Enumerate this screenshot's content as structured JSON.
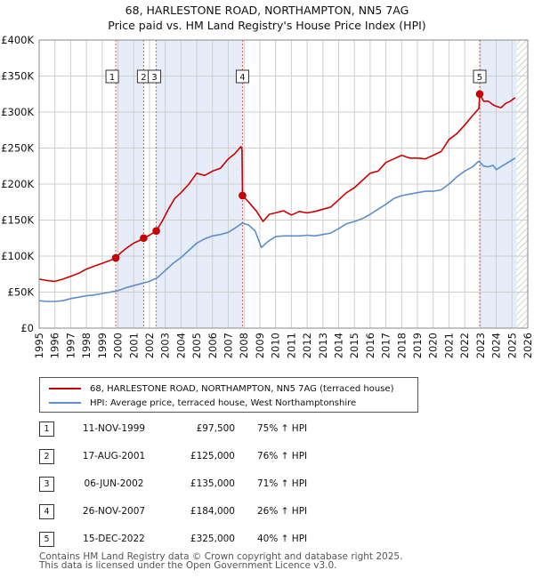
{
  "title_line1": "68, HARLESTONE ROAD, NORTHAMPTON, NN5 7AG",
  "title_line2": "Price paid vs. HM Land Registry's House Price Index (HPI)",
  "colors": {
    "property": "#cc0000",
    "hpi": "#5b8ecb",
    "shade": "#e6ecf8",
    "grid": "#cfcfcf"
  },
  "legend": {
    "property_label": "68, HARLESTONE ROAD, NORTHAMPTON, NN5 7AG (terraced house)",
    "hpi_label": "HPI: Average price, terraced house, West Northamptonshire"
  },
  "transactions": [
    {
      "num": "1",
      "date": "11-NOV-1999",
      "price": "£97,500",
      "hpi": "75% ↑ HPI"
    },
    {
      "num": "2",
      "date": "17-AUG-2001",
      "price": "£125,000",
      "hpi": "76% ↑ HPI"
    },
    {
      "num": "3",
      "date": "06-JUN-2002",
      "price": "£135,000",
      "hpi": "71% ↑ HPI"
    },
    {
      "num": "4",
      "date": "26-NOV-2007",
      "price": "£184,000",
      "hpi": "26% ↑ HPI"
    },
    {
      "num": "5",
      "date": "15-DEC-2022",
      "price": "£325,000",
      "hpi": "40% ↑ HPI"
    }
  ],
  "footer_line1": "Contains HM Land Registry data © Crown copyright and database right 2025.",
  "footer_line2": "This data is licensed under the Open Government Licence v3.0.",
  "chart_data": {
    "type": "line",
    "title": "Price paid vs. HM Land Registry's House Price Index (HPI)",
    "xlim": [
      1995,
      2026
    ],
    "ylim": [
      0,
      400000
    ],
    "x_ticks": [
      1995,
      1996,
      1997,
      1998,
      1999,
      2000,
      2001,
      2002,
      2003,
      2004,
      2005,
      2006,
      2007,
      2008,
      2009,
      2010,
      2011,
      2012,
      2013,
      2014,
      2015,
      2016,
      2017,
      2018,
      2019,
      2020,
      2021,
      2022,
      2023,
      2024,
      2025,
      2026
    ],
    "y_ticks": [
      {
        "value": 0,
        "label": "£0"
      },
      {
        "value": 50000,
        "label": "£50K"
      },
      {
        "value": 100000,
        "label": "£100K"
      },
      {
        "value": 150000,
        "label": "£150K"
      },
      {
        "value": 200000,
        "label": "£200K"
      },
      {
        "value": 250000,
        "label": "£250K"
      },
      {
        "value": 300000,
        "label": "£300K"
      },
      {
        "value": 350000,
        "label": "£350K"
      },
      {
        "value": 400000,
        "label": "£400K"
      }
    ],
    "grid": true,
    "shaded_periods": [
      [
        1999.86,
        2001.63
      ],
      [
        2002.43,
        2007.9
      ],
      [
        2022.95,
        2025.3
      ]
    ],
    "future_hatch_from": 2025.3,
    "series": [
      {
        "name": "68, HARLESTONE ROAD, NORTHAMPTON, NN5 7AG (terraced house)",
        "x": [
          1995.0,
          1995.5,
          1996.0,
          1996.5,
          1997.0,
          1997.5,
          1998.0,
          1998.5,
          1999.0,
          1999.5,
          1999.86,
          2000.2,
          2000.6,
          2001.0,
          2001.3,
          2001.63,
          2002.0,
          2002.43,
          2002.8,
          2003.2,
          2003.6,
          2004.0,
          2004.5,
          2005.0,
          2005.5,
          2006.0,
          2006.5,
          2007.0,
          2007.4,
          2007.8,
          2007.87,
          2007.9,
          2008.3,
          2008.8,
          2009.2,
          2009.6,
          2010.0,
          2010.5,
          2011.0,
          2011.5,
          2012.0,
          2012.5,
          2013.0,
          2013.5,
          2014.0,
          2014.5,
          2015.0,
          2015.5,
          2016.0,
          2016.5,
          2017.0,
          2017.5,
          2018.0,
          2018.5,
          2019.0,
          2019.5,
          2020.0,
          2020.5,
          2021.0,
          2021.5,
          2022.0,
          2022.5,
          2022.9,
          2022.95,
          2023.2,
          2023.5,
          2023.8,
          2024.0,
          2024.3,
          2024.6,
          2024.9,
          2025.2
        ],
        "values": [
          68000,
          66000,
          65000,
          68000,
          72000,
          76000,
          82000,
          86000,
          90000,
          94000,
          97500,
          105000,
          112000,
          118000,
          121000,
          125000,
          129000,
          135000,
          148000,
          165000,
          180000,
          188000,
          200000,
          215000,
          212000,
          218000,
          222000,
          235000,
          242000,
          252000,
          248000,
          184000,
          175000,
          162000,
          148000,
          158000,
          160000,
          163000,
          157000,
          162000,
          160000,
          162000,
          165000,
          168000,
          178000,
          188000,
          195000,
          205000,
          215000,
          218000,
          230000,
          235000,
          240000,
          236000,
          236000,
          235000,
          240000,
          245000,
          262000,
          270000,
          282000,
          295000,
          305000,
          325000,
          315000,
          315000,
          310000,
          308000,
          306000,
          312000,
          315000,
          320000
        ]
      },
      {
        "name": "HPI: Average price, terraced house, West Northamptonshire",
        "x": [
          1995.0,
          1995.5,
          1996.0,
          1996.5,
          1997.0,
          1997.5,
          1998.0,
          1998.5,
          1999.0,
          1999.5,
          2000.0,
          2000.5,
          2001.0,
          2001.5,
          2002.0,
          2002.5,
          2003.0,
          2003.5,
          2004.0,
          2004.5,
          2005.0,
          2005.5,
          2006.0,
          2006.5,
          2007.0,
          2007.5,
          2007.9,
          2008.3,
          2008.7,
          2009.1,
          2009.5,
          2010.0,
          2010.5,
          2011.0,
          2011.5,
          2012.0,
          2012.5,
          2013.0,
          2013.5,
          2014.0,
          2014.5,
          2015.0,
          2015.5,
          2016.0,
          2016.5,
          2017.0,
          2017.5,
          2018.0,
          2018.5,
          2019.0,
          2019.5,
          2020.0,
          2020.5,
          2021.0,
          2021.5,
          2022.0,
          2022.5,
          2022.9,
          2023.2,
          2023.5,
          2023.8,
          2024.0,
          2024.3,
          2024.6,
          2024.9,
          2025.2
        ],
        "values": [
          38000,
          37000,
          37000,
          38000,
          41000,
          43000,
          45000,
          46000,
          48000,
          50000,
          52000,
          56000,
          59000,
          62000,
          65000,
          70000,
          80000,
          90000,
          98000,
          108000,
          118000,
          124000,
          128000,
          130000,
          133000,
          140000,
          146000,
          143000,
          135000,
          112000,
          120000,
          127000,
          128000,
          128000,
          128000,
          129000,
          128000,
          130000,
          132000,
          138000,
          145000,
          148000,
          152000,
          158000,
          165000,
          172000,
          180000,
          184000,
          186000,
          188000,
          190000,
          190000,
          192000,
          200000,
          210000,
          218000,
          224000,
          232000,
          225000,
          224000,
          226000,
          220000,
          224000,
          228000,
          232000,
          236000
        ]
      }
    ],
    "markers": [
      {
        "label": "1",
        "x": 1999.86,
        "y": 97500
      },
      {
        "label": "2",
        "x": 2001.63,
        "y": 125000
      },
      {
        "label": "3",
        "x": 2002.43,
        "y": 135000
      },
      {
        "label": "4",
        "x": 2007.9,
        "y": 184000
      },
      {
        "label": "5",
        "x": 2022.95,
        "y": 325000
      }
    ]
  }
}
